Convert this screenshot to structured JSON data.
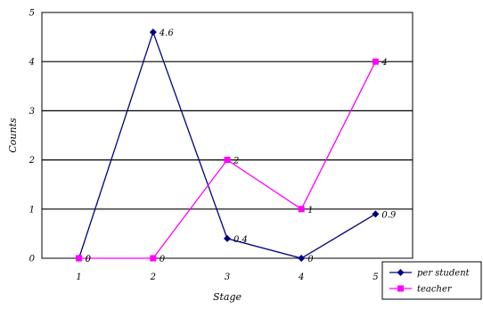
{
  "chart_data": {
    "type": "line",
    "title": "",
    "xlabel": "Stage",
    "ylabel": "Counts",
    "categories": [
      "1",
      "2",
      "3",
      "4",
      "5"
    ],
    "ylim": [
      0,
      5
    ],
    "yticks": [
      "0",
      "1",
      "2",
      "3",
      "4",
      "5"
    ],
    "grid": true,
    "legend_position": "bottom-right",
    "series": [
      {
        "name": "per student",
        "values": [
          0,
          4.6,
          0.4,
          0,
          0.9
        ],
        "labels": [
          "0",
          "4.6",
          "0.4",
          "0",
          "0.9"
        ],
        "color": "#000080",
        "marker": "diamond"
      },
      {
        "name": "teacher",
        "values": [
          0,
          0,
          2,
          1,
          4
        ],
        "labels": [
          "0",
          "0",
          "2",
          "1",
          "4"
        ],
        "color": "#ff00ff",
        "marker": "square"
      }
    ]
  }
}
